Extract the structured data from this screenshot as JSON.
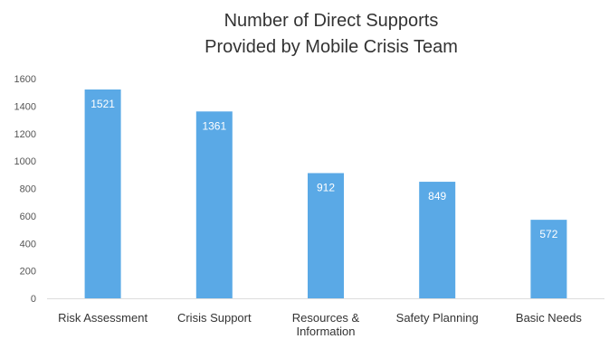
{
  "chart_data": {
    "type": "bar",
    "title": "Number of Direct Supports Provided by Mobile Crisis Team",
    "title_lines": [
      "Number of Direct Supports",
      "Provided by Mobile Crisis Team"
    ],
    "xlabel": "",
    "ylabel": "",
    "categories": [
      [
        "Risk Assessment"
      ],
      [
        "Crisis Support"
      ],
      [
        "Resources &",
        "Information"
      ],
      [
        "Safety Planning"
      ],
      [
        "Basic Needs"
      ]
    ],
    "values": [
      1521,
      1361,
      912,
      849,
      572
    ],
    "value_labels": [
      "1521",
      "1361",
      "912",
      "849",
      "572"
    ],
    "ylim": [
      0,
      1600
    ],
    "yticks": [
      0,
      200,
      400,
      600,
      800,
      1000,
      1200,
      1400,
      1600
    ],
    "grid": false,
    "legend": "none",
    "colors": {
      "bar": "#5aa9e6",
      "text": "#333333",
      "axis_text": "#555555",
      "axis_line": "#dddddd",
      "value_text": "#ffffff"
    }
  }
}
